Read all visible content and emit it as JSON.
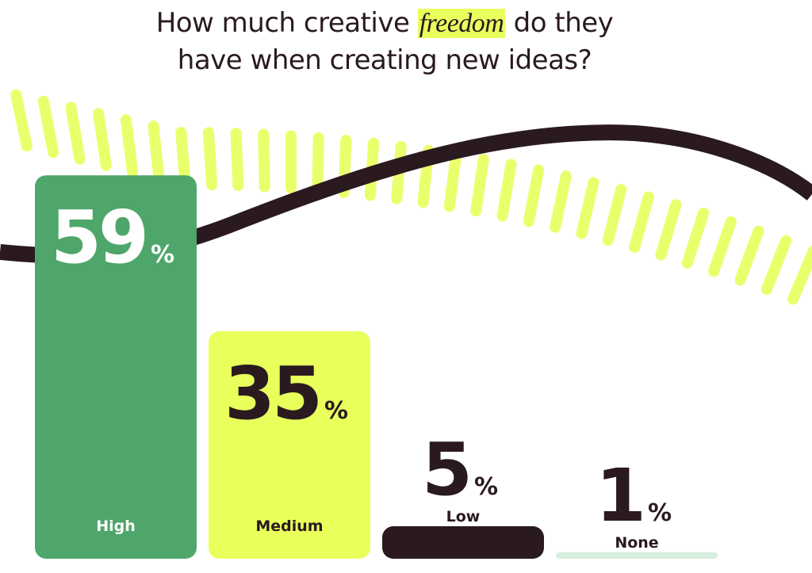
{
  "chart_data": {
    "type": "bar",
    "title": {
      "before": "How much creative",
      "emphasis": "freedom",
      "after": "do they have when creating new ideas?"
    },
    "categories": [
      "High",
      "Medium",
      "Low",
      "None"
    ],
    "values": [
      59,
      35,
      5,
      1
    ],
    "unit": "%",
    "colors": [
      "#4fa66b",
      "#e8ff5c",
      "#2a1a20",
      "#d6eedd"
    ],
    "label_colors": [
      "#ffffff",
      "#2a1a20",
      "#2a1a20",
      "#2a1a20"
    ]
  }
}
